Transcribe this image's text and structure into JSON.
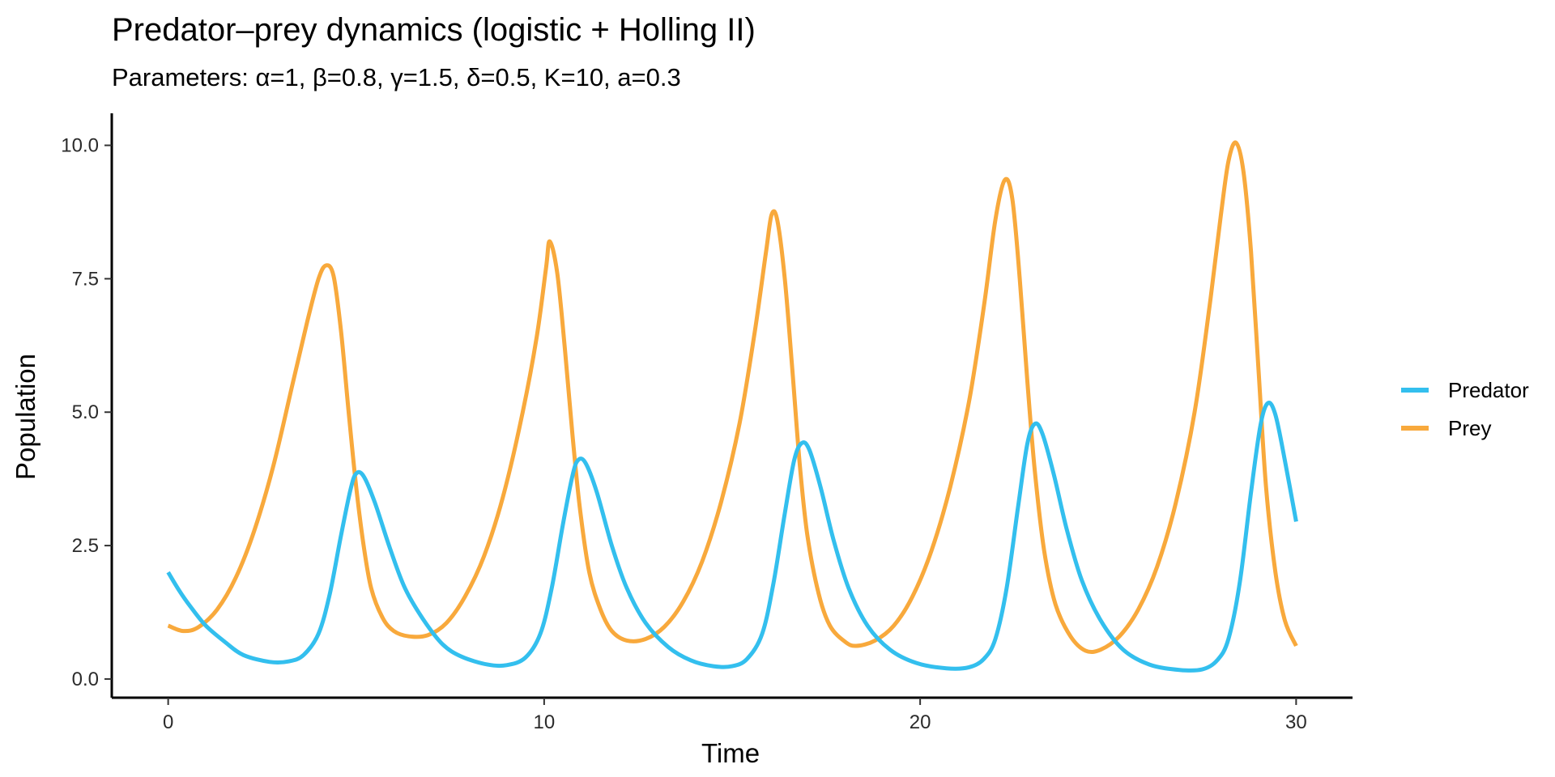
{
  "chart_data": {
    "type": "line",
    "title": "Predator–prey dynamics (logistic + Holling II)",
    "subtitle": "Parameters: α=1, β=0.8, γ=1.5, δ=0.5, K=10, a=0.3",
    "xlabel": "Time",
    "ylabel": "Population",
    "xlim": [
      -1.5,
      31.5
    ],
    "ylim": [
      -0.35,
      10.6
    ],
    "x_ticks": [
      0,
      10,
      20,
      30
    ],
    "x_tick_labels": [
      "0",
      "10",
      "20",
      "30"
    ],
    "y_ticks": [
      0,
      2.5,
      5,
      7.5,
      10
    ],
    "y_tick_labels": [
      "0.0",
      "2.5",
      "5.0",
      "7.5",
      "10.0"
    ],
    "grid": false,
    "legend_position": "right",
    "series": [
      {
        "name": "Predator",
        "color": "#33bfee",
        "points": [
          [
            0,
            2.0
          ],
          [
            0.3,
            1.65
          ],
          [
            0.6,
            1.35
          ],
          [
            1.0,
            1.0
          ],
          [
            1.5,
            0.7
          ],
          [
            2.0,
            0.45
          ],
          [
            2.7,
            0.32
          ],
          [
            3.2,
            0.33
          ],
          [
            3.6,
            0.45
          ],
          [
            4.0,
            0.85
          ],
          [
            4.3,
            1.6
          ],
          [
            4.6,
            2.7
          ],
          [
            4.85,
            3.55
          ],
          [
            5.0,
            3.85
          ],
          [
            5.2,
            3.8
          ],
          [
            5.5,
            3.3
          ],
          [
            5.9,
            2.45
          ],
          [
            6.3,
            1.7
          ],
          [
            6.8,
            1.1
          ],
          [
            7.3,
            0.65
          ],
          [
            7.8,
            0.42
          ],
          [
            8.5,
            0.27
          ],
          [
            9.0,
            0.26
          ],
          [
            9.5,
            0.4
          ],
          [
            9.9,
            0.85
          ],
          [
            10.2,
            1.7
          ],
          [
            10.5,
            2.9
          ],
          [
            10.75,
            3.8
          ],
          [
            10.9,
            4.1
          ],
          [
            11.1,
            4.05
          ],
          [
            11.4,
            3.5
          ],
          [
            11.8,
            2.5
          ],
          [
            12.2,
            1.7
          ],
          [
            12.7,
            1.05
          ],
          [
            13.3,
            0.6
          ],
          [
            13.9,
            0.35
          ],
          [
            14.5,
            0.24
          ],
          [
            15.0,
            0.24
          ],
          [
            15.4,
            0.38
          ],
          [
            15.8,
            0.85
          ],
          [
            16.1,
            1.8
          ],
          [
            16.4,
            3.1
          ],
          [
            16.65,
            4.1
          ],
          [
            16.85,
            4.42
          ],
          [
            17.05,
            4.3
          ],
          [
            17.35,
            3.6
          ],
          [
            17.7,
            2.6
          ],
          [
            18.1,
            1.7
          ],
          [
            18.6,
            1.0
          ],
          [
            19.2,
            0.55
          ],
          [
            19.9,
            0.3
          ],
          [
            20.7,
            0.2
          ],
          [
            21.3,
            0.22
          ],
          [
            21.7,
            0.38
          ],
          [
            22.0,
            0.75
          ],
          [
            22.3,
            1.7
          ],
          [
            22.6,
            3.2
          ],
          [
            22.85,
            4.4
          ],
          [
            23.05,
            4.78
          ],
          [
            23.25,
            4.6
          ],
          [
            23.55,
            3.85
          ],
          [
            23.9,
            2.8
          ],
          [
            24.3,
            1.85
          ],
          [
            24.8,
            1.1
          ],
          [
            25.4,
            0.55
          ],
          [
            26.1,
            0.27
          ],
          [
            26.9,
            0.17
          ],
          [
            27.5,
            0.18
          ],
          [
            27.9,
            0.35
          ],
          [
            28.2,
            0.75
          ],
          [
            28.5,
            1.8
          ],
          [
            28.8,
            3.5
          ],
          [
            29.05,
            4.75
          ],
          [
            29.25,
            5.17
          ],
          [
            29.45,
            4.95
          ],
          [
            29.7,
            4.1
          ],
          [
            30.0,
            2.95
          ]
        ]
      },
      {
        "name": "Prey",
        "color": "#f8a93c",
        "points": [
          [
            0,
            1.0
          ],
          [
            0.4,
            0.9
          ],
          [
            0.8,
            0.97
          ],
          [
            1.3,
            1.3
          ],
          [
            1.8,
            1.9
          ],
          [
            2.3,
            2.8
          ],
          [
            2.8,
            4.0
          ],
          [
            3.3,
            5.5
          ],
          [
            3.7,
            6.7
          ],
          [
            4.0,
            7.5
          ],
          [
            4.2,
            7.75
          ],
          [
            4.4,
            7.55
          ],
          [
            4.6,
            6.5
          ],
          [
            4.8,
            5.0
          ],
          [
            5.0,
            3.6
          ],
          [
            5.2,
            2.5
          ],
          [
            5.4,
            1.7
          ],
          [
            5.7,
            1.15
          ],
          [
            6.0,
            0.9
          ],
          [
            6.4,
            0.8
          ],
          [
            6.9,
            0.82
          ],
          [
            7.4,
            1.05
          ],
          [
            7.9,
            1.55
          ],
          [
            8.4,
            2.3
          ],
          [
            8.9,
            3.4
          ],
          [
            9.4,
            4.9
          ],
          [
            9.8,
            6.4
          ],
          [
            10.05,
            7.7
          ],
          [
            10.15,
            8.2
          ],
          [
            10.35,
            7.6
          ],
          [
            10.55,
            6.2
          ],
          [
            10.75,
            4.6
          ],
          [
            10.95,
            3.2
          ],
          [
            11.2,
            2.0
          ],
          [
            11.5,
            1.3
          ],
          [
            11.8,
            0.9
          ],
          [
            12.2,
            0.72
          ],
          [
            12.7,
            0.75
          ],
          [
            13.2,
            0.98
          ],
          [
            13.7,
            1.45
          ],
          [
            14.2,
            2.2
          ],
          [
            14.7,
            3.3
          ],
          [
            15.2,
            4.8
          ],
          [
            15.6,
            6.5
          ],
          [
            15.9,
            8.0
          ],
          [
            16.05,
            8.7
          ],
          [
            16.2,
            8.6
          ],
          [
            16.4,
            7.5
          ],
          [
            16.6,
            5.8
          ],
          [
            16.8,
            4.0
          ],
          [
            17.0,
            2.7
          ],
          [
            17.3,
            1.6
          ],
          [
            17.6,
            1.0
          ],
          [
            18.0,
            0.7
          ],
          [
            18.3,
            0.62
          ],
          [
            18.8,
            0.72
          ],
          [
            19.3,
            1.0
          ],
          [
            19.8,
            1.55
          ],
          [
            20.3,
            2.4
          ],
          [
            20.8,
            3.6
          ],
          [
            21.3,
            5.2
          ],
          [
            21.7,
            7.0
          ],
          [
            22.0,
            8.6
          ],
          [
            22.25,
            9.35
          ],
          [
            22.45,
            9.0
          ],
          [
            22.65,
            7.5
          ],
          [
            22.85,
            5.6
          ],
          [
            23.05,
            3.9
          ],
          [
            23.3,
            2.4
          ],
          [
            23.6,
            1.4
          ],
          [
            24.0,
            0.8
          ],
          [
            24.4,
            0.53
          ],
          [
            24.8,
            0.55
          ],
          [
            25.3,
            0.8
          ],
          [
            25.8,
            1.3
          ],
          [
            26.3,
            2.1
          ],
          [
            26.8,
            3.3
          ],
          [
            27.3,
            5.0
          ],
          [
            27.7,
            7.0
          ],
          [
            28.0,
            8.7
          ],
          [
            28.2,
            9.7
          ],
          [
            28.4,
            10.05
          ],
          [
            28.6,
            9.5
          ],
          [
            28.8,
            8.0
          ],
          [
            29.0,
            5.8
          ],
          [
            29.2,
            3.6
          ],
          [
            29.45,
            2.0
          ],
          [
            29.7,
            1.1
          ],
          [
            30.0,
            0.62
          ]
        ]
      }
    ]
  }
}
